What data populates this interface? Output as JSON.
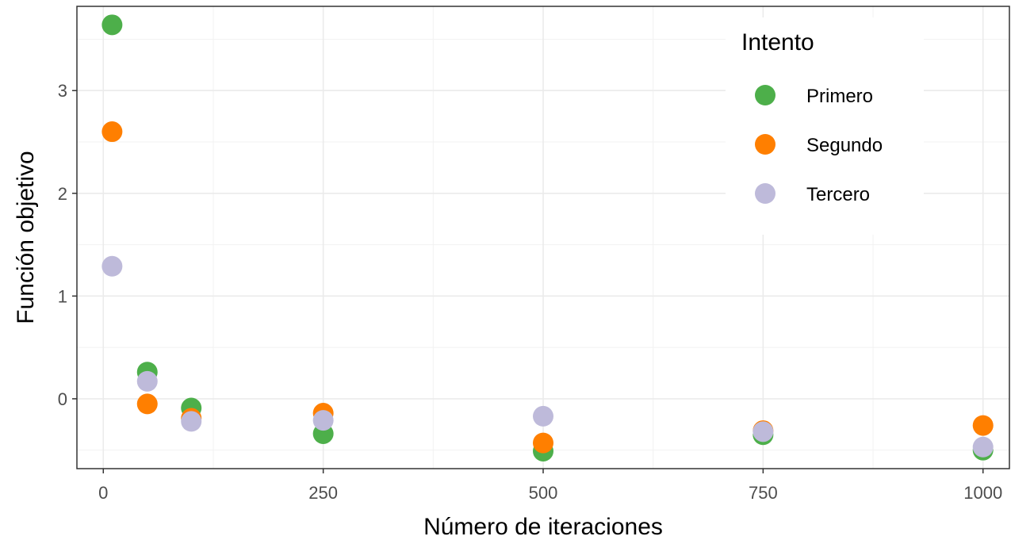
{
  "chart_data": {
    "type": "scatter",
    "xlabel": "Número de iteraciones",
    "ylabel": "Función objetivo",
    "xlim": [
      -30,
      1030
    ],
    "ylim": [
      -0.68,
      3.82
    ],
    "x_ticks": [
      0,
      250,
      500,
      750,
      1000
    ],
    "x_tick_labels": [
      "0",
      "250",
      "500",
      "750",
      "1000"
    ],
    "y_ticks": [
      0,
      1,
      2,
      3
    ],
    "y_tick_labels": [
      "0",
      "1",
      "2",
      "3"
    ],
    "x_minor_grid": [
      125,
      375,
      625,
      875
    ],
    "y_minor_grid": [
      -0.5,
      0.5,
      1.5,
      2.5,
      3.5
    ],
    "grid": true,
    "legend": {
      "title": "Intento",
      "position": "top-right"
    },
    "series": [
      {
        "name": "Primero",
        "color": "#4daf4a",
        "x": [
          10,
          50,
          100,
          250,
          500,
          750,
          1000
        ],
        "y": [
          3.64,
          0.26,
          -0.09,
          -0.34,
          -0.51,
          -0.35,
          -0.5
        ]
      },
      {
        "name": "Segundo",
        "color": "#ff7f00",
        "x": [
          10,
          50,
          100,
          250,
          500,
          750,
          1000
        ],
        "y": [
          2.6,
          -0.05,
          -0.19,
          -0.14,
          -0.43,
          -0.31,
          -0.26
        ]
      },
      {
        "name": "Tercero",
        "color": "#bebada",
        "x": [
          10,
          50,
          100,
          250,
          500,
          750,
          1000
        ],
        "y": [
          1.29,
          0.17,
          -0.22,
          -0.21,
          -0.17,
          -0.32,
          -0.47
        ]
      }
    ]
  }
}
